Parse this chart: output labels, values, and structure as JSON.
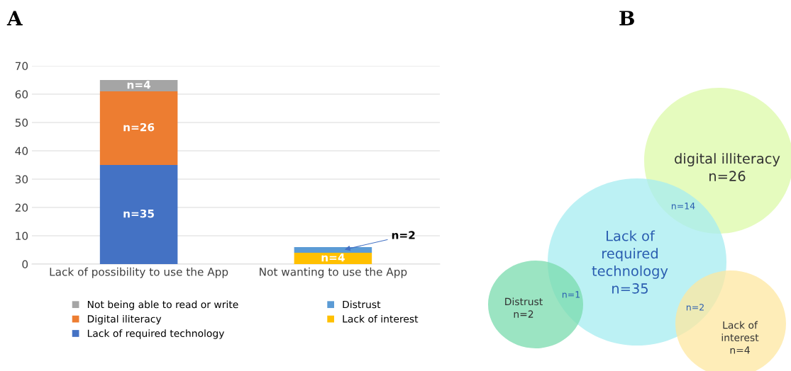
{
  "chart_data": [
    {
      "type": "bar",
      "title": "A",
      "stacked": true,
      "categories": [
        "Lack of possibility to use the App",
        "Not wanting to use the App"
      ],
      "series": [
        {
          "name": "Lack of required technology",
          "color": "#4472c4",
          "values": [
            35,
            null
          ],
          "value_labels": [
            "n=35",
            null
          ]
        },
        {
          "name": "Digital iliteracy",
          "color": "#ed7d31",
          "values": [
            26,
            null
          ],
          "value_labels": [
            "n=26",
            null
          ]
        },
        {
          "name": "Not being able to read or write",
          "color": "#a5a5a5",
          "values": [
            4,
            null
          ],
          "value_labels": [
            "n=4",
            null
          ]
        },
        {
          "name": "Lack of interest",
          "color": "#ffc000",
          "values": [
            null,
            4
          ],
          "value_labels": [
            null,
            "n=4"
          ]
        },
        {
          "name": "Distrust",
          "color": "#5b9bd5",
          "values": [
            null,
            2
          ],
          "value_labels": [
            null,
            "n=2"
          ]
        }
      ],
      "ylim": [
        0,
        70
      ],
      "yticks": [
        0,
        10,
        20,
        30,
        40,
        50,
        60,
        70
      ],
      "grid": "y",
      "legend": "bottom"
    },
    {
      "type": "other",
      "title": "B",
      "categories": [
        "digital illiteracy",
        "Lack of\nrequired\ntechnology",
        "Distrust",
        "Lack of\ninterest"
      ],
      "value_labels": [
        "n=26",
        "n=35",
        "n=2",
        "n=4"
      ],
      "colors": [
        "#dcf9a8",
        "#a6ecf0",
        "#79dbad",
        "#fde7a0"
      ],
      "annotations": [
        "n=14",
        "n=1",
        "n=2"
      ]
    }
  ]
}
